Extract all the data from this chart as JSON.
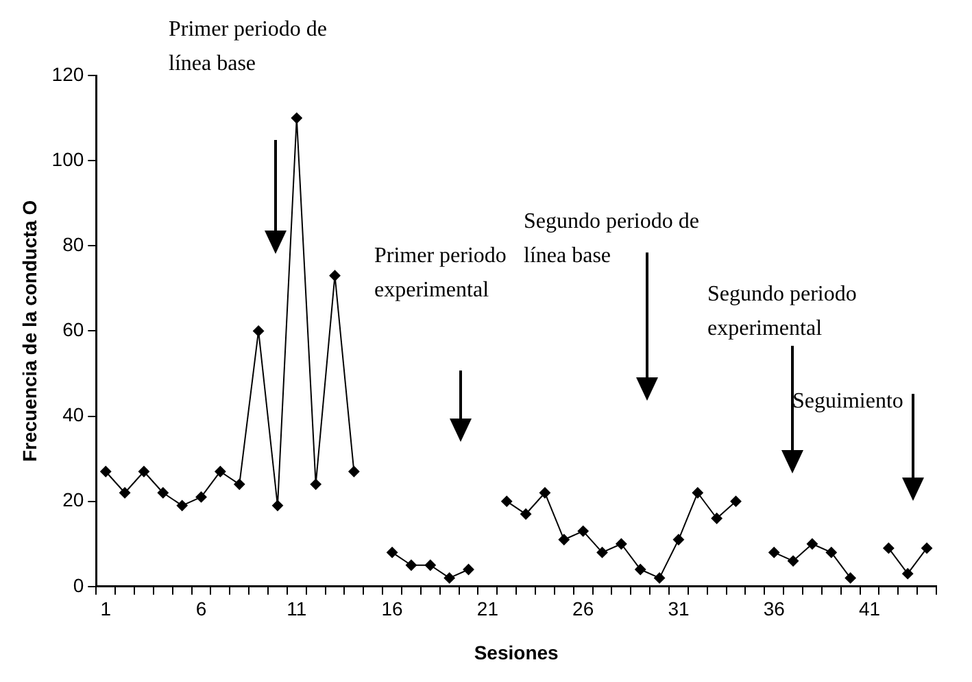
{
  "chart_data": {
    "type": "line",
    "xlabel": "Sesiones",
    "ylabel": "Frecuencia de la conducta O",
    "x": [
      1,
      2,
      3,
      4,
      5,
      6,
      7,
      8,
      9,
      10,
      11,
      12,
      13,
      14,
      15,
      16,
      17,
      18,
      19,
      20,
      21,
      22,
      23,
      24,
      25,
      26,
      27,
      28,
      29,
      30,
      31,
      32,
      33,
      34,
      35,
      36,
      37,
      38,
      39,
      40,
      41,
      42,
      43,
      44
    ],
    "series": [
      {
        "color": "#000000",
        "values": [
          27,
          22,
          27,
          22,
          19,
          21,
          27,
          24,
          60,
          19,
          110,
          24,
          73,
          27,
          null,
          8,
          5,
          5,
          2,
          4,
          null,
          20,
          17,
          22,
          11,
          13,
          8,
          10,
          4,
          2,
          11,
          22,
          16,
          20,
          null,
          8,
          6,
          10,
          8,
          2,
          null,
          9,
          3,
          9
        ]
      }
    ],
    "xlim": [
      0.5,
      44.5
    ],
    "xticks": [
      1,
      6,
      11,
      16,
      21,
      26,
      31,
      36,
      41,
      {
        "value": 0.5,
        "label": null
      },
      {
        "value": 1.5,
        "label": null
      },
      {
        "value": 2.5,
        "label": null
      },
      {
        "value": 3.5,
        "label": null
      },
      {
        "value": 4.5,
        "label": null
      },
      {
        "value": 5.5,
        "label": null
      },
      {
        "value": 6.5,
        "label": null
      },
      {
        "value": 7.5,
        "label": null
      },
      {
        "value": 8.5,
        "label": null
      },
      {
        "value": 9.5,
        "label": null
      },
      {
        "value": 10.5,
        "label": null
      },
      {
        "value": 11.5,
        "label": null
      },
      {
        "value": 12.5,
        "label": null
      },
      {
        "value": 13.5,
        "label": null
      },
      {
        "value": 14.5,
        "label": null
      },
      {
        "value": 15.5,
        "label": null
      },
      {
        "value": 16.5,
        "label": null
      },
      {
        "value": 17.5,
        "label": null
      },
      {
        "value": 18.5,
        "label": null
      },
      {
        "value": 19.5,
        "label": null
      },
      {
        "value": 20.5,
        "label": null
      },
      {
        "value": 21.5,
        "label": null
      },
      {
        "value": 22.5,
        "label": null
      },
      {
        "value": 23.5,
        "label": null
      },
      {
        "value": 24.5,
        "label": null
      },
      {
        "value": 25.5,
        "label": null
      },
      {
        "value": 26.5,
        "label": null
      },
      {
        "value": 27.5,
        "label": null
      },
      {
        "value": 28.5,
        "label": null
      },
      {
        "value": 29.5,
        "label": null
      },
      {
        "value": 30.5,
        "label": null
      },
      {
        "value": 31.5,
        "label": null
      },
      {
        "value": 32.5,
        "label": null
      },
      {
        "value": 33.5,
        "label": null
      },
      {
        "value": 34.5,
        "label": null
      },
      {
        "value": 35.5,
        "label": null
      },
      {
        "value": 36.5,
        "label": null
      },
      {
        "value": 37.5,
        "label": null
      },
      {
        "value": 38.5,
        "label": null
      },
      {
        "value": 39.5,
        "label": null
      },
      {
        "value": 40.5,
        "label": null
      },
      {
        "value": 41.5,
        "label": null
      },
      {
        "value": 42.5,
        "label": null
      },
      {
        "value": 43.5,
        "label": null
      },
      {
        "value": 44.5,
        "label": null
      }
    ],
    "ylim": [
      0,
      120
    ],
    "yticks": [
      0,
      20,
      40,
      60,
      80,
      100,
      120
    ],
    "grid": false,
    "legend": false,
    "marker": "diamond",
    "line_style": "solid",
    "annotations": [
      "Primer periodo de línea base",
      "Primer periodo experimental",
      "Segundo periodo de línea base",
      "Segundo periodo experimental",
      "Seguimiento"
    ]
  }
}
